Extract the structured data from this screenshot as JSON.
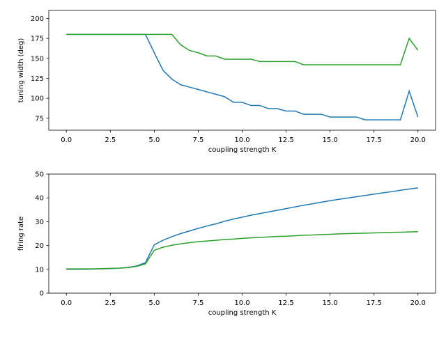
{
  "chart_data": [
    {
      "type": "line",
      "xlabel": "coupling strength K",
      "ylabel": "tuning width (deg)",
      "x": [
        0,
        0.5,
        1,
        1.5,
        2,
        2.5,
        3,
        3.5,
        4,
        4.5,
        5,
        5.5,
        6,
        6.5,
        7,
        7.5,
        8,
        8.5,
        9,
        9.5,
        10,
        10.5,
        11,
        11.5,
        12,
        12.5,
        13,
        13.5,
        14,
        14.5,
        15,
        15.5,
        16,
        16.5,
        17,
        17.5,
        18,
        18.5,
        19,
        19.5,
        20
      ],
      "xlim": [
        -1,
        21
      ],
      "ylim": [
        60,
        210
      ],
      "xticks": [
        {
          "value": 0,
          "label": "0.0"
        },
        2.5,
        {
          "value": 5,
          "label": "5.0"
        },
        7.5,
        {
          "value": 10,
          "label": "10.0"
        },
        12.5,
        {
          "value": 15,
          "label": "15.0"
        },
        17.5,
        {
          "value": 20,
          "label": "20.0"
        }
      ],
      "yticks": [
        75,
        100,
        125,
        150,
        175,
        200
      ],
      "series": [
        {
          "color": "#1f77b4",
          "values": [
            180,
            180,
            180,
            180,
            180,
            180,
            180,
            180,
            180,
            180,
            157,
            135,
            124,
            117,
            114,
            111,
            108,
            105,
            102,
            95,
            95,
            91,
            91,
            87,
            87,
            84,
            84,
            80,
            80,
            80,
            76.5,
            76.5,
            76.5,
            76.5,
            73,
            73,
            73,
            73,
            73,
            109,
            76.5
          ]
        },
        {
          "color": "#2ca02c",
          "values": [
            180,
            180,
            180,
            180,
            180,
            180,
            180,
            180,
            180,
            180,
            180,
            180,
            180,
            167,
            160,
            157,
            153,
            153,
            149,
            149,
            149,
            149,
            146,
            146,
            146,
            146,
            146,
            142,
            142,
            142,
            142,
            142,
            142,
            142,
            142,
            142,
            142,
            142,
            142,
            175,
            160
          ]
        }
      ]
    },
    {
      "type": "line",
      "xlabel": "coupling strength K",
      "ylabel": "firing rate",
      "x": [
        0,
        0.5,
        1,
        1.5,
        2,
        2.5,
        3,
        3.5,
        4,
        4.5,
        5,
        5.5,
        6,
        6.5,
        7,
        7.5,
        8,
        8.5,
        9,
        9.5,
        10,
        10.5,
        11,
        11.5,
        12,
        12.5,
        13,
        13.5,
        14,
        14.5,
        15,
        15.5,
        16,
        16.5,
        17,
        17.5,
        18,
        18.5,
        19,
        19.5,
        20
      ],
      "xlim": [
        -1,
        21
      ],
      "ylim": [
        0,
        50
      ],
      "xticks": [
        {
          "value": 0,
          "label": "0.0"
        },
        2.5,
        {
          "value": 5,
          "label": "5.0"
        },
        7.5,
        {
          "value": 10,
          "label": "10.0"
        },
        12.5,
        {
          "value": 15,
          "label": "15.0"
        },
        17.5,
        {
          "value": 20,
          "label": "20.0"
        }
      ],
      "yticks": [
        0,
        10,
        20,
        30,
        40,
        50
      ],
      "series": [
        {
          "color": "#1f77b4",
          "values": [
            10,
            10,
            10,
            10.1,
            10.2,
            10.3,
            10.5,
            10.8,
            11.4,
            12.8,
            20.3,
            22.2,
            23.7,
            25,
            26.1,
            27.2,
            28.2,
            29.1,
            30.2,
            31.1,
            31.9,
            32.7,
            33.4,
            34.1,
            34.8,
            35.5,
            36.2,
            36.9,
            37.5,
            38.2,
            38.8,
            39.4,
            39.9,
            40.5,
            41,
            41.6,
            42.1,
            42.6,
            43.2,
            43.7,
            44.2
          ]
        },
        {
          "color": "#2ca02c",
          "values": [
            10.2,
            10.2,
            10.2,
            10.2,
            10.3,
            10.4,
            10.5,
            10.7,
            11.2,
            12.3,
            18,
            19.3,
            20.1,
            20.7,
            21.2,
            21.6,
            21.9,
            22.2,
            22.5,
            22.7,
            23,
            23.2,
            23.4,
            23.6,
            23.8,
            23.9,
            24.1,
            24.3,
            24.4,
            24.6,
            24.7,
            24.9,
            25,
            25.1,
            25.2,
            25.3,
            25.4,
            25.5,
            25.6,
            25.7,
            25.8
          ]
        }
      ]
    }
  ]
}
